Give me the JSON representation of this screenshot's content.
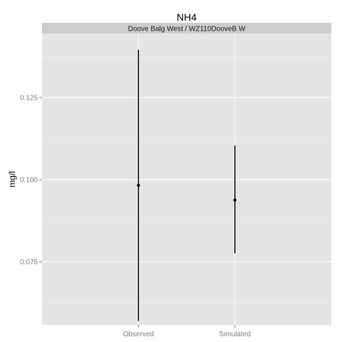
{
  "chart_data": {
    "type": "pointrange",
    "title": "NH4",
    "facet_label": "Doove Balg West / WZ110DooveB W",
    "ylabel": "mg/l",
    "xlabel": "",
    "categories": [
      "Observed",
      "Simulated"
    ],
    "series": [
      {
        "values": [
          {
            "category": "Observed",
            "mean": 0.0983,
            "low": 0.057,
            "high": 0.1395
          },
          {
            "category": "Simulated",
            "mean": 0.0938,
            "low": 0.0776,
            "high": 0.1104
          }
        ]
      }
    ],
    "yticks": [
      0.075,
      0.1,
      0.125
    ],
    "ytick_labels": [
      "0.075",
      "0.100",
      "0.125"
    ],
    "ylim": [
      0.0558,
      0.1445
    ],
    "grid": true,
    "colors": {
      "panel": "#e5e5e5",
      "strip": "#cccccc",
      "grid": "#ffffff",
      "mark": "#000000"
    }
  }
}
